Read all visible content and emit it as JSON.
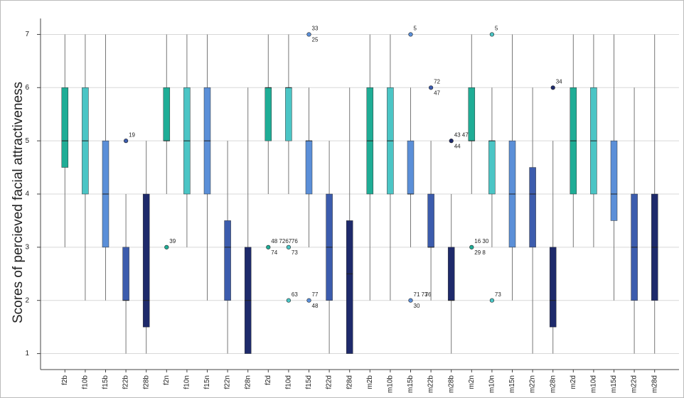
{
  "chart_data": {
    "type": "box",
    "y_label": "Scores of percieved facial attractiveness",
    "ylim": [
      0.7,
      7.3
    ],
    "yticks": [
      1,
      2,
      3,
      4,
      5,
      6,
      7
    ],
    "grid": true,
    "categories": [
      "f2b",
      "f10b",
      "f15b",
      "f22b",
      "f28b",
      "f2n",
      "f10n",
      "f15n",
      "f22n",
      "f28n",
      "f2d",
      "f10d",
      "f15d",
      "f22d",
      "f28d",
      "m2b",
      "m10b",
      "m15b",
      "m22b",
      "m28b",
      "m2n",
      "m10n",
      "m15n",
      "m22n",
      "m28n",
      "m2d",
      "m10d",
      "m15d",
      "m22d",
      "m28d"
    ],
    "boxes": [
      {
        "whisker_low": 3,
        "q1": 4.5,
        "median": 5,
        "q3": 6,
        "whisker_high": 7,
        "color": "#1fad96",
        "outliers": []
      },
      {
        "whisker_low": 2,
        "q1": 4,
        "median": 5,
        "q3": 6,
        "whisker_high": 7,
        "color": "#4bc5c5",
        "outliers": []
      },
      {
        "whisker_low": 2,
        "q1": 3,
        "median": 4,
        "q3": 5,
        "whisker_high": 7,
        "color": "#5b8fd8",
        "outliers": []
      },
      {
        "whisker_low": 1,
        "q1": 2,
        "median": 2,
        "q3": 3,
        "whisker_high": 4,
        "color": "#3c5cad",
        "outliers": [
          {
            "value": 5,
            "labels": [
              "19"
            ]
          }
        ]
      },
      {
        "whisker_low": 1,
        "q1": 1.5,
        "median": 2,
        "q3": 4,
        "whisker_high": 5,
        "color": "#1e2a6b",
        "outliers": []
      },
      {
        "whisker_low": 4,
        "q1": 5,
        "median": 5,
        "q3": 6,
        "whisker_high": 7,
        "color": "#1fad96",
        "outliers": [
          {
            "value": 3,
            "labels": [
              "39"
            ]
          }
        ]
      },
      {
        "whisker_low": 3,
        "q1": 4,
        "median": 5,
        "q3": 6,
        "whisker_high": 7,
        "color": "#4bc5c5",
        "outliers": []
      },
      {
        "whisker_low": 2,
        "q1": 4,
        "median": 5,
        "q3": 6,
        "whisker_high": 7,
        "color": "#5b8fd8",
        "outliers": []
      },
      {
        "whisker_low": 1,
        "q1": 2,
        "median": 3,
        "q3": 3.5,
        "whisker_high": 5,
        "color": "#3c5cad",
        "outliers": []
      },
      {
        "whisker_low": 1,
        "q1": 1,
        "median": 2,
        "q3": 3,
        "whisker_high": 6,
        "color": "#1e2a6b",
        "outliers": []
      },
      {
        "whisker_low": 4,
        "q1": 5,
        "median": 6,
        "q3": 6,
        "whisker_high": 7,
        "color": "#1fad96",
        "outliers": [
          {
            "value": 3,
            "labels": [
              "48 7267",
              "74"
            ]
          }
        ]
      },
      {
        "whisker_low": 4,
        "q1": 5,
        "median": 6,
        "q3": 6,
        "whisker_high": 7,
        "color": "#4bc5c5",
        "outliers": [
          {
            "value": 3,
            "labels": [
              "76",
              "73"
            ]
          },
          {
            "value": 2,
            "labels": [
              "63"
            ]
          }
        ]
      },
      {
        "whisker_low": 3,
        "q1": 4,
        "median": 5,
        "q3": 5,
        "whisker_high": 6,
        "color": "#5b8fd8",
        "outliers": [
          {
            "value": 7,
            "labels": [
              "33",
              "25"
            ]
          },
          {
            "value": 2,
            "labels": [
              "77",
              "48"
            ]
          }
        ]
      },
      {
        "whisker_low": 1,
        "q1": 2,
        "median": 3,
        "q3": 4,
        "whisker_high": 5,
        "color": "#3c5cad",
        "outliers": []
      },
      {
        "whisker_low": 1,
        "q1": 1,
        "median": 2.5,
        "q3": 3.5,
        "whisker_high": 6,
        "color": "#1e2a6b",
        "outliers": []
      },
      {
        "whisker_low": 2,
        "q1": 4,
        "median": 5,
        "q3": 6,
        "whisker_high": 7,
        "color": "#1fad96",
        "outliers": []
      },
      {
        "whisker_low": 2,
        "q1": 4,
        "median": 5,
        "q3": 6,
        "whisker_high": 7,
        "color": "#4bc5c5",
        "outliers": []
      },
      {
        "whisker_low": 3,
        "q1": 4,
        "median": 4,
        "q3": 5,
        "whisker_high": 6,
        "color": "#5b8fd8",
        "outliers": [
          {
            "value": 7,
            "labels": [
              "5"
            ]
          },
          {
            "value": 2,
            "labels": [
              "71 73",
              "30",
              "76"
            ]
          }
        ]
      },
      {
        "whisker_low": 2,
        "q1": 3,
        "median": 3,
        "q3": 4,
        "whisker_high": 5,
        "color": "#3c5cad",
        "outliers": [
          {
            "value": 6,
            "labels": [
              "72",
              "47"
            ]
          }
        ]
      },
      {
        "whisker_low": 1,
        "q1": 2,
        "median": 2,
        "q3": 3,
        "whisker_high": 4,
        "color": "#1e2a6b",
        "outliers": [
          {
            "value": 5,
            "labels": [
              "43 47",
              "44"
            ]
          }
        ]
      },
      {
        "whisker_low": 4,
        "q1": 5,
        "median": 5,
        "q3": 6,
        "whisker_high": 7,
        "color": "#1fad96",
        "outliers": [
          {
            "value": 3,
            "labels": [
              "16 30",
              "29 8"
            ]
          }
        ]
      },
      {
        "whisker_low": 3,
        "q1": 4,
        "median": 5,
        "q3": 5,
        "whisker_high": 6,
        "color": "#4bc5c5",
        "outliers": [
          {
            "value": 7,
            "labels": [
              "5"
            ]
          },
          {
            "value": 2,
            "labels": [
              "73"
            ]
          }
        ]
      },
      {
        "whisker_low": 2,
        "q1": 3,
        "median": 4,
        "q3": 5,
        "whisker_high": 7,
        "color": "#5b8fd8",
        "outliers": []
      },
      {
        "whisker_low": 1,
        "q1": 3,
        "median": 4,
        "q3": 4.5,
        "whisker_high": 6,
        "color": "#3c5cad",
        "outliers": []
      },
      {
        "whisker_low": 1,
        "q1": 1.5,
        "median": 2,
        "q3": 3,
        "whisker_high": 5,
        "color": "#1e2a6b",
        "outliers": [
          {
            "value": 6,
            "labels": [
              "34"
            ]
          }
        ]
      },
      {
        "whisker_low": 3,
        "q1": 4,
        "median": 5,
        "q3": 6,
        "whisker_high": 7,
        "color": "#1fad96",
        "outliers": []
      },
      {
        "whisker_low": 3,
        "q1": 4,
        "median": 5,
        "q3": 6,
        "whisker_high": 7,
        "color": "#4bc5c5",
        "outliers": []
      },
      {
        "whisker_low": 2,
        "q1": 3.5,
        "median": 4,
        "q3": 5,
        "whisker_high": 7,
        "color": "#5b8fd8",
        "outliers": []
      },
      {
        "whisker_low": 1,
        "q1": 2,
        "median": 3,
        "q3": 4,
        "whisker_high": 6,
        "color": "#3c5cad",
        "outliers": []
      },
      {
        "whisker_low": 1,
        "q1": 2,
        "median": 3,
        "q3": 4,
        "whisker_high": 7,
        "color": "#1e2a6b",
        "outliers": []
      }
    ]
  }
}
